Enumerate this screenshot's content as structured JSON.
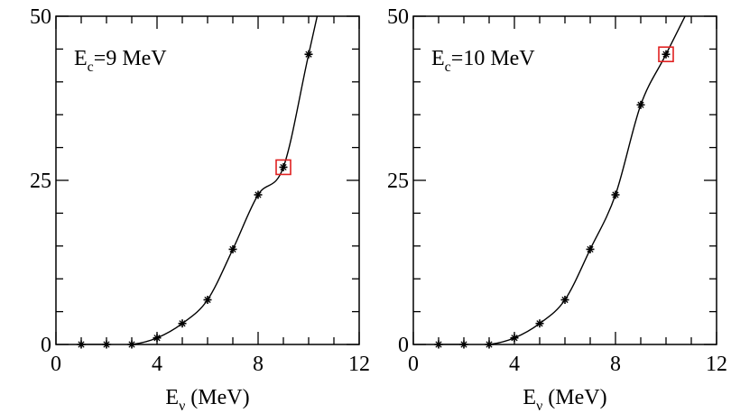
{
  "chart_data": [
    {
      "type": "line",
      "annotation": {
        "main": "E",
        "sub": "c",
        "rest": "=9 MeV"
      },
      "xlabel": {
        "main": "E",
        "sub": "ν",
        "rest": " (MeV)"
      },
      "ylabel": "",
      "xlim": [
        0,
        12
      ],
      "ylim": [
        0,
        50
      ],
      "xticks": [
        "0",
        "4",
        "8",
        "12"
      ],
      "yticks": [
        "0",
        "25",
        "50"
      ],
      "x": [
        1,
        2,
        3,
        4,
        5,
        6,
        7,
        8,
        9,
        10
      ],
      "y": [
        0,
        0,
        0,
        1,
        3.2,
        6.8,
        14.5,
        22.8,
        27,
        44.2
      ],
      "highlight": {
        "x": 9,
        "y": 27,
        "color": "#e02020"
      },
      "grid": false
    },
    {
      "type": "line",
      "annotation": {
        "main": "E",
        "sub": "c",
        "rest": "=10 MeV"
      },
      "xlabel": {
        "main": "E",
        "sub": "ν",
        "rest": " (MeV)"
      },
      "ylabel": "",
      "xlim": [
        0,
        12
      ],
      "ylim": [
        0,
        50
      ],
      "xticks": [
        "0",
        "4",
        "8",
        "12"
      ],
      "yticks": [
        "0",
        "25",
        "50"
      ],
      "x": [
        1,
        2,
        3,
        4,
        5,
        6,
        7,
        8,
        9,
        10
      ],
      "y": [
        0,
        0,
        0,
        1,
        3.2,
        6.8,
        14.5,
        22.8,
        36.5,
        44.2
      ],
      "highlight": {
        "x": 10,
        "y": 44.2,
        "color": "#e02020"
      },
      "grid": false
    }
  ]
}
